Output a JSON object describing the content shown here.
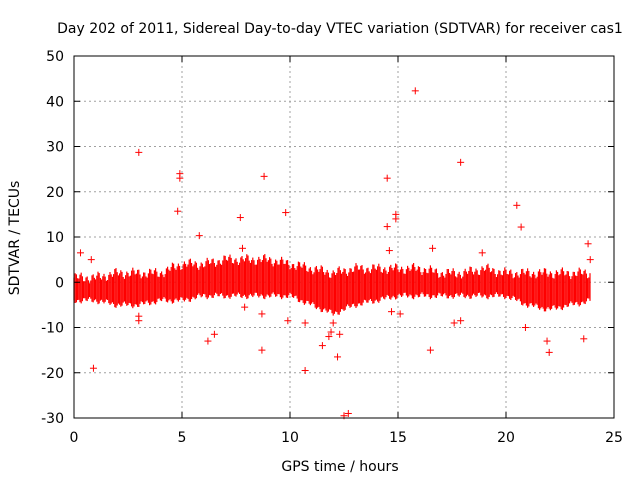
{
  "chart_data": {
    "type": "scatter",
    "title": "Day 202 of 2011, Sidereal Day-to-day VTEC variation (SDTVAR) for receiver cas1",
    "xlabel": "GPS time / hours",
    "ylabel": "SDTVAR / TECUs",
    "xlim": [
      0,
      25
    ],
    "ylim": [
      -30,
      50
    ],
    "xticks": [
      0,
      5,
      10,
      15,
      20,
      25
    ],
    "yticks": [
      -30,
      -20,
      -10,
      0,
      10,
      20,
      30,
      40,
      50
    ],
    "grid": true,
    "marker": "+",
    "color": "#ff0000",
    "series": [
      {
        "name": "dense band (approximate envelope, hourly)",
        "x": [
          0,
          1,
          2,
          3,
          4,
          5,
          6,
          7,
          8,
          9,
          10,
          11,
          12,
          13,
          14,
          15,
          16,
          17,
          18,
          19,
          20,
          21,
          22,
          23,
          24
        ],
        "ymin": [
          -4,
          -4,
          -5,
          -5,
          -4,
          -4,
          -3,
          -3,
          -3,
          -3,
          -3,
          -5,
          -7,
          -5,
          -4,
          -3,
          -3,
          -3,
          -3,
          -3,
          -3,
          -5,
          -6,
          -5,
          -4
        ],
        "ymax": [
          1,
          1,
          2,
          2,
          2,
          4,
          4,
          5,
          5,
          5,
          4,
          3,
          2,
          3,
          3,
          3,
          3,
          2,
          2,
          3,
          2,
          2,
          2,
          2,
          2
        ]
      },
      {
        "name": "outliers",
        "x": [
          0.3,
          0.8,
          0.9,
          3.0,
          3.0,
          3.0,
          4.8,
          4.9,
          4.9,
          5.8,
          6.2,
          6.5,
          7.7,
          7.8,
          7.9,
          8.7,
          8.7,
          8.8,
          9.8,
          9.9,
          10.7,
          10.7,
          11.5,
          11.8,
          11.9,
          12.0,
          12.2,
          12.3,
          12.5,
          12.7,
          14.5,
          14.5,
          14.6,
          14.7,
          14.9,
          14.9,
          15.1,
          15.8,
          16.5,
          16.6,
          17.6,
          17.9,
          17.9,
          18.9,
          20.5,
          20.7,
          20.9,
          21.9,
          22.0,
          23.6,
          23.8,
          23.9
        ],
        "y": [
          6.5,
          5.0,
          -19.0,
          28.7,
          -7.5,
          -8.5,
          15.7,
          23.0,
          24.0,
          10.3,
          -13.0,
          -11.5,
          14.3,
          7.5,
          -5.5,
          -7.0,
          -15.0,
          23.4,
          15.4,
          -8.5,
          -9.0,
          -19.5,
          -14.0,
          -12.0,
          -11.0,
          -9.0,
          -16.5,
          -11.5,
          -29.5,
          -29.0,
          23.0,
          12.3,
          7.0,
          -6.5,
          14.0,
          15.0,
          -7.0,
          42.3,
          -15.0,
          7.5,
          -9.0,
          26.5,
          -8.5,
          6.5,
          17.0,
          12.2,
          -10.0,
          -13.0,
          -15.5,
          -12.5,
          8.5,
          5.0
        ]
      }
    ]
  }
}
